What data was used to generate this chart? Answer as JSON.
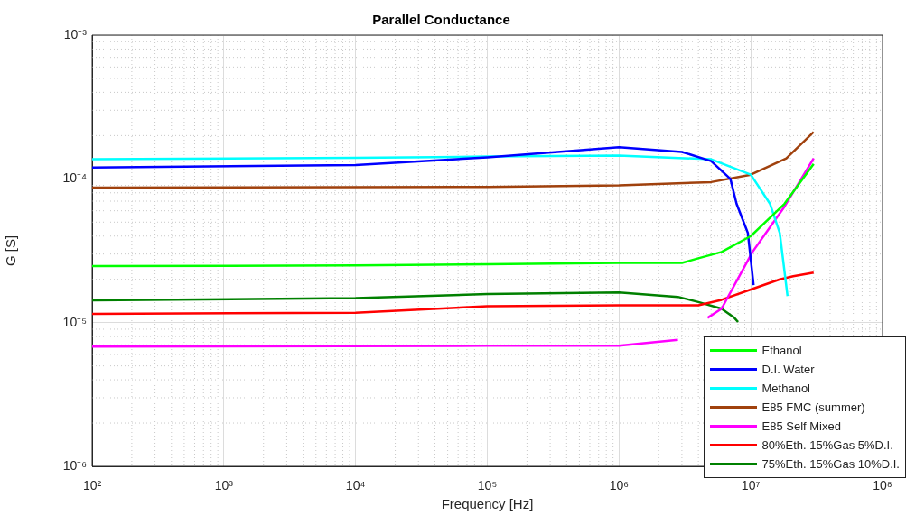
{
  "chart_data": {
    "type": "line",
    "title": "Parallel Conductance",
    "xlabel": "Frequency [Hz]",
    "ylabel": "G [S]",
    "log": "xy",
    "grid": true,
    "legend": "bottom right",
    "marker": "none",
    "line_style": "solid",
    "xlim": [
      100,
      100000000
    ],
    "ylim": [
      1e-06,
      0.001
    ],
    "xticks": [
      {
        "value": 100,
        "label": "10²"
      },
      {
        "value": 1000,
        "label": "10³"
      },
      {
        "value": 10000,
        "label": "10⁴"
      },
      {
        "value": 100000,
        "label": "10⁵"
      },
      {
        "value": 1000000,
        "label": "10⁶"
      },
      {
        "value": 10000000,
        "label": "10⁷"
      },
      {
        "value": 100000000,
        "label": "10⁸"
      }
    ],
    "yticks": [
      {
        "value": 1e-06,
        "label": "10⁻⁶"
      },
      {
        "value": 1e-05,
        "label": "10⁻⁵"
      },
      {
        "value": 0.0001,
        "label": "10⁻⁴"
      },
      {
        "value": 0.001,
        "label": "10⁻³"
      }
    ],
    "series": [
      {
        "name": "Ethanol",
        "color": "#00ff00",
        "x": [
          100,
          10000,
          100000,
          1000000,
          3000000,
          4000000,
          6000000,
          10000000,
          18000000,
          30000000
        ],
        "values": [
          2.47e-05,
          2.5e-05,
          2.55e-05,
          2.6e-05,
          2.6e-05,
          2.8e-05,
          3.1e-05,
          4e-05,
          6.7e-05,
          0.000127
        ]
      },
      {
        "name": "D.I. Water",
        "color": "#0000ff",
        "x": [
          100,
          10000,
          100000,
          1000000,
          3000000,
          5000000,
          7000000,
          7800000,
          9500000,
          10500000
        ],
        "values": [
          0.00012,
          0.000125,
          0.000141,
          0.000166,
          0.000154,
          0.000133,
          0.0001,
          6.7e-05,
          4.2e-05,
          1.82e-05
        ]
      },
      {
        "name": "Methanol",
        "color": "#00ffff",
        "x": [
          100,
          10000,
          100000,
          1000000,
          5000000,
          10000000,
          14000000,
          16600000,
          19000000
        ],
        "values": [
          0.000137,
          0.00014,
          0.000143,
          0.000145,
          0.000137,
          0.000107,
          6.7e-05,
          4.2e-05,
          1.53e-05
        ]
      },
      {
        "name": "E85 FMC (summer)",
        "color": "#a0410d",
        "x": [
          100,
          100000,
          1000000,
          5000000,
          10000000,
          18600000,
          30000000
        ],
        "values": [
          8.7e-05,
          8.8e-05,
          9e-05,
          9.5e-05,
          0.000107,
          0.000139,
          0.000212
        ]
      },
      {
        "name": "E85 Self Mixed",
        "color": "#ff00ff",
        "x": [
          100,
          100000,
          1000000,
          2800000,
          3500000,
          4700000,
          6000000,
          10300000,
          18000000,
          30000000
        ],
        "values": [
          6.8e-06,
          6.9e-06,
          6.9e-06,
          7.6e-06,
          null,
          1.08e-05,
          1.25e-05,
          3.1e-05,
          6.4e-05,
          0.000139
        ]
      },
      {
        "name": "80%Eth. 15%Gas 5%D.I.",
        "color": "#ff0000",
        "x": [
          100,
          10000,
          100000,
          1000000,
          4000000,
          6000000,
          10000000,
          16600000,
          21000000,
          30000000
        ],
        "values": [
          1.15e-05,
          1.17e-05,
          1.3e-05,
          1.32e-05,
          1.32e-05,
          1.44e-05,
          1.7e-05,
          2e-05,
          2.1e-05,
          2.23e-05
        ]
      },
      {
        "name": "75%Eth. 15%Gas 10%D.I.",
        "color": "#008000",
        "x": [
          100,
          10000,
          100000,
          1000000,
          2800000,
          4000000,
          6000000,
          7500000,
          8000000
        ],
        "values": [
          1.43e-05,
          1.48e-05,
          1.58e-05,
          1.62e-05,
          1.51e-05,
          1.39e-05,
          1.25e-05,
          1.08e-05,
          1.01e-05
        ]
      }
    ]
  }
}
